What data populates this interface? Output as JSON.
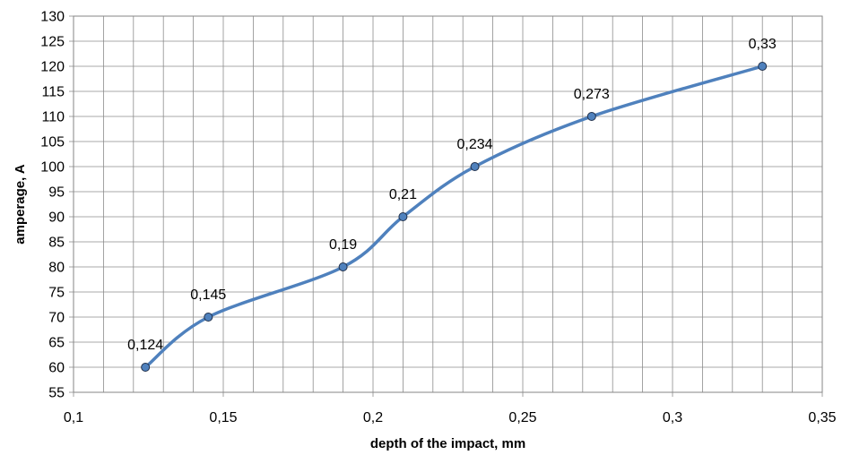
{
  "chart_data": {
    "type": "line",
    "title": "",
    "xlabel": "depth of the impact, mm",
    "ylabel": "amperage, A",
    "xlim": [
      0.1,
      0.35
    ],
    "ylim": [
      55,
      130
    ],
    "x_ticks": [
      "0,1",
      "0,15",
      "0,2",
      "0,25",
      "0,3",
      "0,35"
    ],
    "y_ticks": [
      "55",
      "60",
      "65",
      "70",
      "75",
      "80",
      "85",
      "90",
      "95",
      "100",
      "105",
      "110",
      "115",
      "120",
      "125",
      "130"
    ],
    "grid": true,
    "legend": "none",
    "smooth": true,
    "series": [
      {
        "color": "#4f81bd",
        "marker_color": "#4f81bd",
        "x": [
          0.124,
          0.145,
          0.19,
          0.21,
          0.234,
          0.273,
          0.33
        ],
        "y": [
          60,
          70,
          80,
          90,
          100,
          110,
          120
        ],
        "labels": [
          "0,124",
          "0,145",
          "0,19",
          "0,21",
          "0,234",
          "0,273",
          "0,33"
        ]
      }
    ]
  }
}
